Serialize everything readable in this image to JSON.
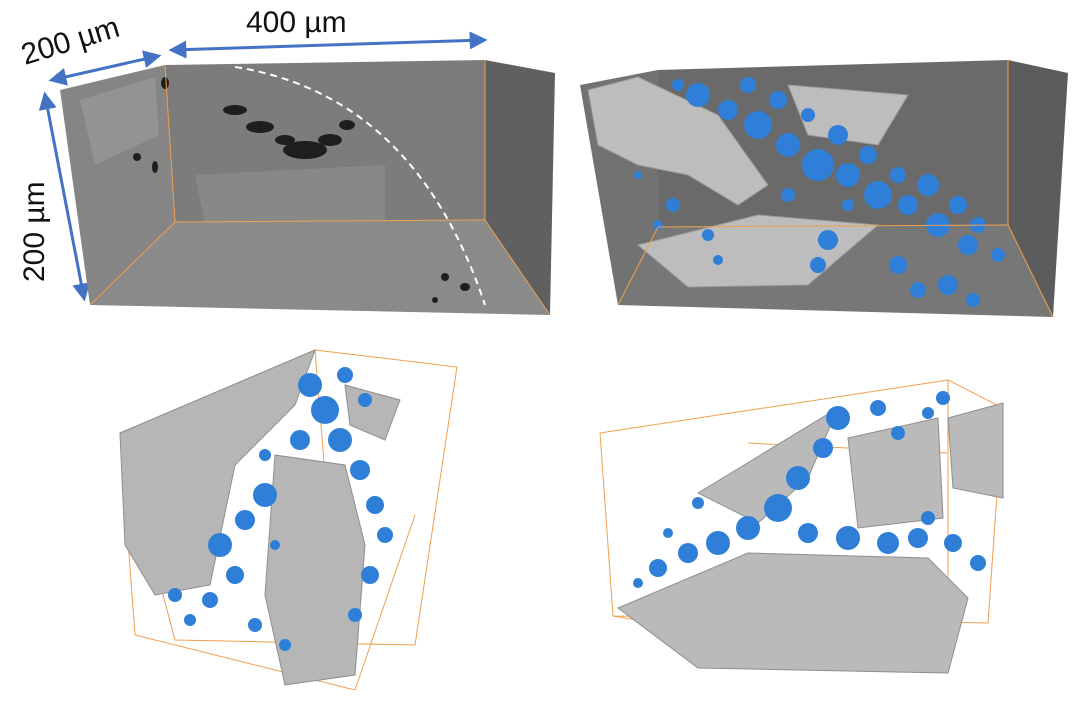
{
  "labels": {
    "depth": "200 µm",
    "width": "400 µm",
    "height": "200 µm"
  },
  "colors": {
    "background": "#ffffff",
    "arrow": "#4472c4",
    "box_edge": "#f0a050",
    "slice_gray": "#7a7a7a",
    "solid_gray": "#b4b4b4",
    "pore_blue": "#2f7fd8"
  },
  "panels": [
    {
      "name": "ct-slice-volume",
      "content": "grayscale CT slices with dashed boundary"
    },
    {
      "name": "pore-render-front",
      "content": "3D pores over solid phase"
    },
    {
      "name": "pore-render-rotated-left",
      "content": "3D pores rotated view"
    },
    {
      "name": "pore-render-rotated-right",
      "content": "3D pores rotated view"
    }
  ]
}
